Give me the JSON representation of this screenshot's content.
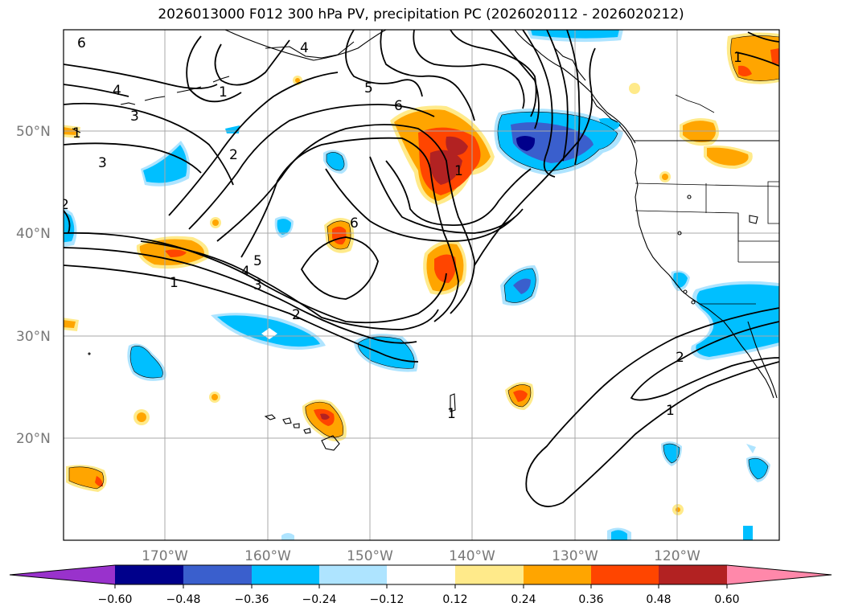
{
  "title": "2026013000 F012 300 hPa PV, precipitation PC (2026020112 - 2026020212)",
  "latitude_labels": [
    "50°N",
    "40°N",
    "30°N",
    "20°N"
  ],
  "longitude_labels": [
    "170°W",
    "160°W",
    "150°W",
    "140°W",
    "130°W",
    "120°W"
  ],
  "contour_labels": [
    "6",
    "4",
    "4",
    "3",
    "3",
    "2",
    "1",
    "5",
    "6",
    "6",
    "5",
    "4",
    "3",
    "2",
    "1",
    "1",
    "1",
    "2",
    "1",
    "1",
    "2",
    "1"
  ],
  "colorbar": {
    "tick_labels": [
      "−0.60",
      "−0.48",
      "−0.36",
      "−0.24",
      "−0.12",
      "0.12",
      "0.24",
      "0.36",
      "0.48",
      "0.60"
    ],
    "colors": [
      "#9932cc",
      "#00008b",
      "#3a5fcd",
      "#00bfff",
      "#aee4ff",
      "#ffffff",
      "#ffea8a",
      "#ffa500",
      "#ff4500",
      "#b22222",
      "#ff88aa"
    ]
  },
  "fill_colors": {
    "neg1": "#aee4ff",
    "neg2": "#00bfff",
    "neg3": "#3a5fcd",
    "neg4": "#00008b",
    "pos1": "#ffea8a",
    "pos2": "#ffa500",
    "pos3": "#ff4500",
    "pos4": "#b22222"
  }
}
